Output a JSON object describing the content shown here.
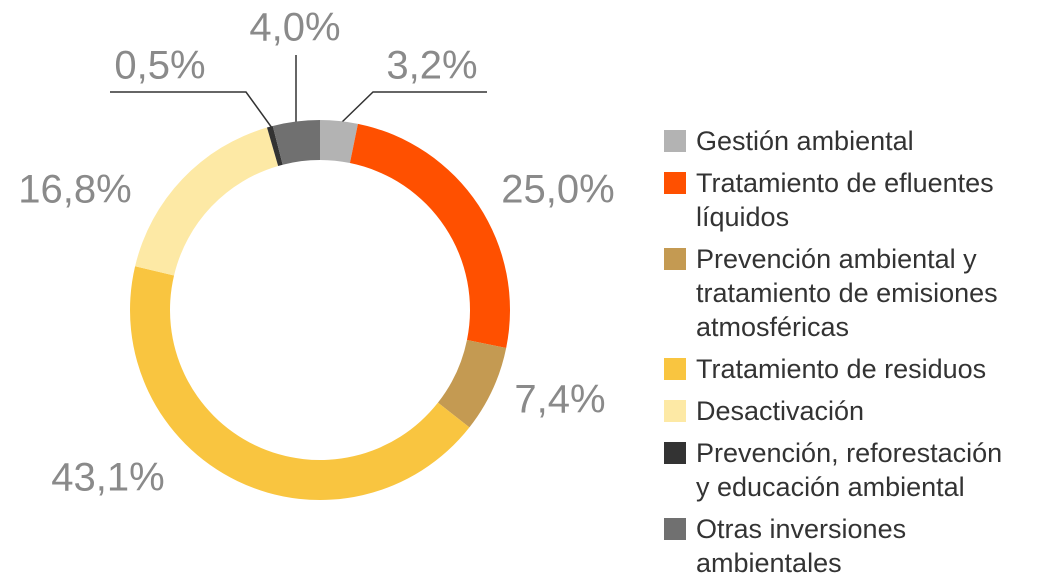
{
  "chart_data": {
    "type": "donut",
    "categories": [
      "Gestión ambiental",
      "Tratamiento de efluentes líquidos",
      "Prevención ambiental y tratamiento de emisiones atmosféricas",
      "Tratamiento de residuos",
      "Desactivación",
      "Prevención, reforestación y educación ambiental",
      "Otras inversiones ambientales"
    ],
    "values": [
      3.2,
      25.0,
      7.4,
      43.1,
      16.8,
      0.5,
      4.0
    ],
    "value_labels": [
      "3,2%",
      "25,0%",
      "7,4%",
      "43,1%",
      "16,8%",
      "0,5%",
      "4,0%"
    ],
    "colors": [
      "#b3b3b3",
      "#ff5000",
      "#c49a52",
      "#f9c540",
      "#fde9a5",
      "#333333",
      "#707070"
    ],
    "legend": "right"
  }
}
